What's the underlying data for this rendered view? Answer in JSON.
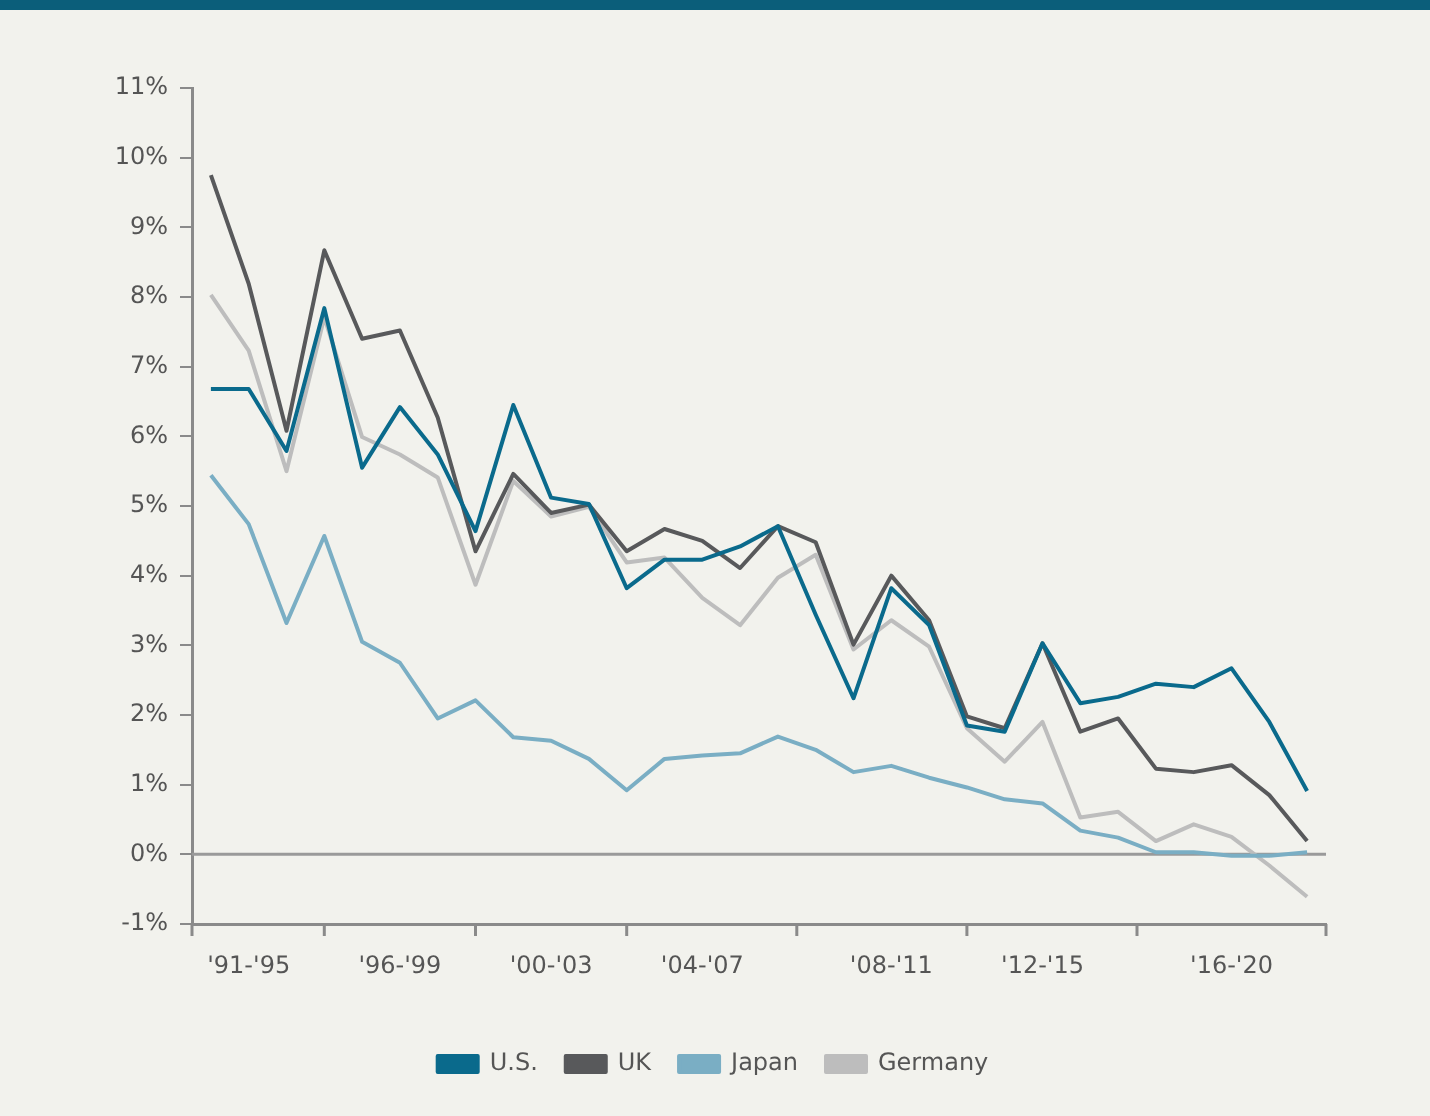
{
  "chart_data": {
    "type": "line",
    "categories": [
      null,
      "'91-'95",
      null,
      null,
      null,
      "'96-'99",
      null,
      null,
      null,
      "'00-'03",
      null,
      null,
      null,
      "'04-'07",
      null,
      null,
      null,
      null,
      "'08-'11",
      null,
      null,
      null,
      "'12-'15",
      null,
      null,
      null,
      null,
      "'16-'20",
      null,
      null
    ],
    "series": [
      {
        "name": "U.S.",
        "color": "#0a6a8c",
        "values": [
          6.68,
          6.68,
          5.79,
          7.84,
          5.55,
          6.42,
          5.74,
          4.64,
          6.45,
          5.12,
          5.03,
          3.82,
          4.23,
          4.23,
          4.42,
          4.71,
          3.44,
          2.24,
          3.82,
          3.29,
          1.85,
          1.76,
          3.03,
          2.17,
          2.26,
          2.45,
          2.4,
          2.67,
          1.9,
          0.91
        ]
      },
      {
        "name": "UK",
        "color": "#58595b",
        "values": [
          9.75,
          8.19,
          6.08,
          8.67,
          7.4,
          7.52,
          6.27,
          4.35,
          5.46,
          4.9,
          5.02,
          4.35,
          4.67,
          4.5,
          4.11,
          4.71,
          4.48,
          3.01,
          4.0,
          3.36,
          1.98,
          1.81,
          3.03,
          1.76,
          1.95,
          1.23,
          1.18,
          1.28,
          0.85,
          0.19
        ]
      },
      {
        "name": "Japan",
        "color": "#7aaec4",
        "values": [
          5.44,
          4.74,
          3.32,
          4.57,
          3.05,
          2.75,
          1.95,
          2.21,
          1.68,
          1.63,
          1.37,
          0.92,
          1.37,
          1.42,
          1.45,
          1.69,
          1.5,
          1.18,
          1.27,
          1.1,
          0.96,
          0.79,
          0.73,
          0.34,
          0.24,
          0.03,
          0.03,
          -0.02,
          -0.02,
          0.03
        ]
      },
      {
        "name": "Germany",
        "color": "#bdbdbd",
        "values": [
          8.03,
          7.23,
          5.5,
          7.71,
          5.99,
          5.74,
          5.41,
          3.87,
          5.36,
          4.85,
          4.99,
          4.19,
          4.26,
          3.68,
          3.29,
          3.97,
          4.3,
          2.94,
          3.36,
          2.98,
          1.81,
          1.33,
          1.9,
          0.53,
          0.61,
          0.19,
          0.43,
          0.25,
          -0.16,
          -0.61
        ]
      }
    ],
    "ylim": [
      -1,
      11
    ],
    "yticks": [
      {
        "value": -1,
        "label": "-1%"
      },
      {
        "value": 0,
        "label": "0%"
      },
      {
        "value": 1,
        "label": "1%"
      },
      {
        "value": 2,
        "label": "2%"
      },
      {
        "value": 3,
        "label": "3%"
      },
      {
        "value": 4,
        "label": "4%"
      },
      {
        "value": 5,
        "label": "5%"
      },
      {
        "value": 6,
        "label": "6%"
      },
      {
        "value": 7,
        "label": "7%"
      },
      {
        "value": 8,
        "label": "8%"
      },
      {
        "value": 9,
        "label": "9%"
      },
      {
        "value": 10,
        "label": "10%"
      },
      {
        "value": 11,
        "label": "11%"
      }
    ],
    "ref_lines": [
      {
        "axis": "y",
        "value": 0,
        "color": "#9a9a9a"
      }
    ],
    "grid": false,
    "legend": "bottom",
    "marker": "none",
    "line_style": "solid"
  }
}
